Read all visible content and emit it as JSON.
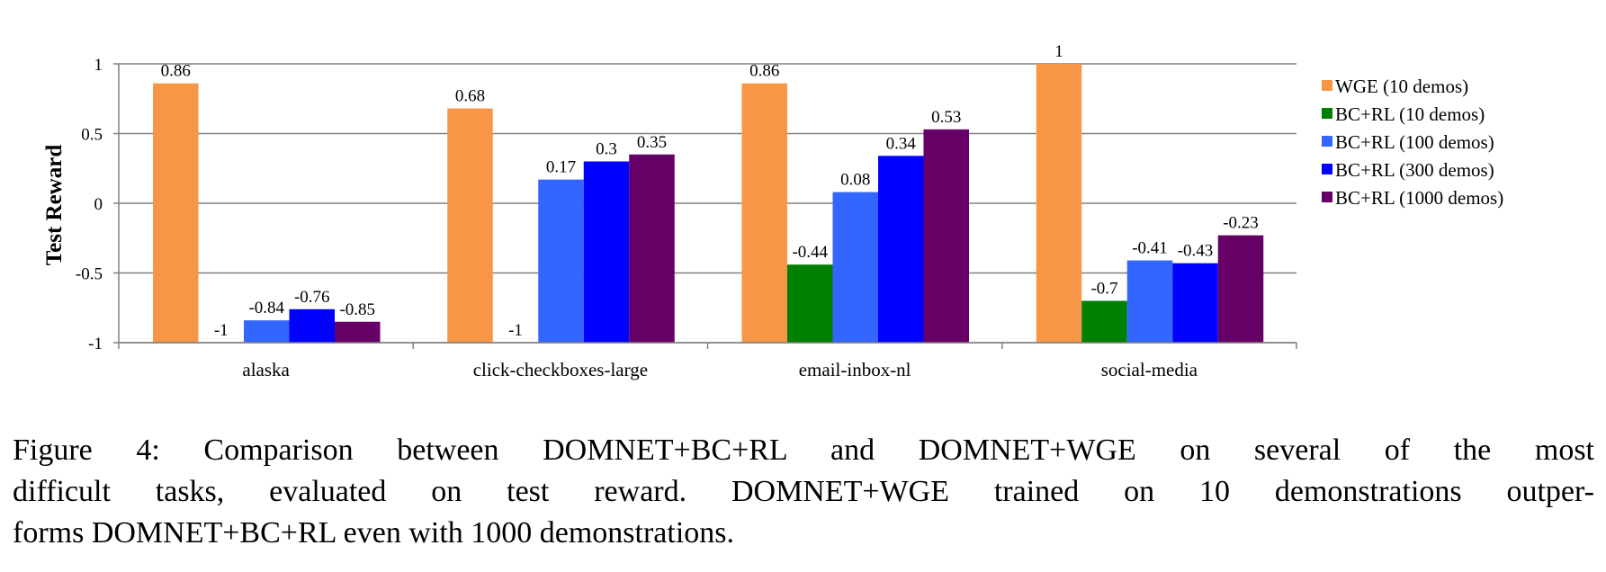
{
  "chart_data": {
    "type": "bar",
    "ylabel": "Test Reward",
    "xlabel": "",
    "ylim": [
      -1,
      1
    ],
    "yticks": [
      1,
      0.5,
      0,
      -0.5,
      -1
    ],
    "ytick_labels": [
      "1",
      "0.5",
      "0",
      "-0.5",
      "-1"
    ],
    "grid": true,
    "legend_position": "right",
    "categories": [
      "alaska",
      "click-checkboxes-large",
      "email-inbox-nl",
      "social-media"
    ],
    "series": [
      {
        "name": "WGE (10 demos)",
        "color": "#F79646",
        "values": [
          0.86,
          0.68,
          0.86,
          1
        ],
        "labels": [
          "0.86",
          "0.68",
          "0.86",
          "1"
        ]
      },
      {
        "name": "BC+RL (10 demos)",
        "color": "#008000",
        "values": [
          -1,
          -1,
          -0.44,
          -0.7
        ],
        "labels": [
          "-1",
          "-1",
          "-0.44",
          "-0.7"
        ]
      },
      {
        "name": "BC+RL (100 demos)",
        "color": "#3366FF",
        "values": [
          -0.84,
          0.17,
          0.08,
          -0.41
        ],
        "labels": [
          "-0.84",
          "0.17",
          "0.08",
          "-0.41"
        ]
      },
      {
        "name": "BC+RL (300 demos)",
        "color": "#0000FF",
        "values": [
          -0.76,
          0.3,
          0.34,
          -0.43
        ],
        "labels": [
          "-0.76",
          "0.3",
          "0.34",
          "-0.43"
        ]
      },
      {
        "name": "BC+RL (1000 demos)",
        "color": "#660066",
        "values": [
          -0.85,
          0.35,
          0.53,
          -0.23
        ],
        "labels": [
          "-0.85",
          "0.35",
          "0.53",
          "-0.23"
        ]
      }
    ]
  },
  "caption": {
    "line1": "Figure 4:   Comparison between DOMNET+BC+RL and DOMNET+WGE on several of the most",
    "line2": "difficult tasks, evaluated on test reward.  DOMNET+WGE trained on 10 demonstrations outper-",
    "line3": "forms DOMNET+BC+RL even with 1000 demonstrations."
  }
}
